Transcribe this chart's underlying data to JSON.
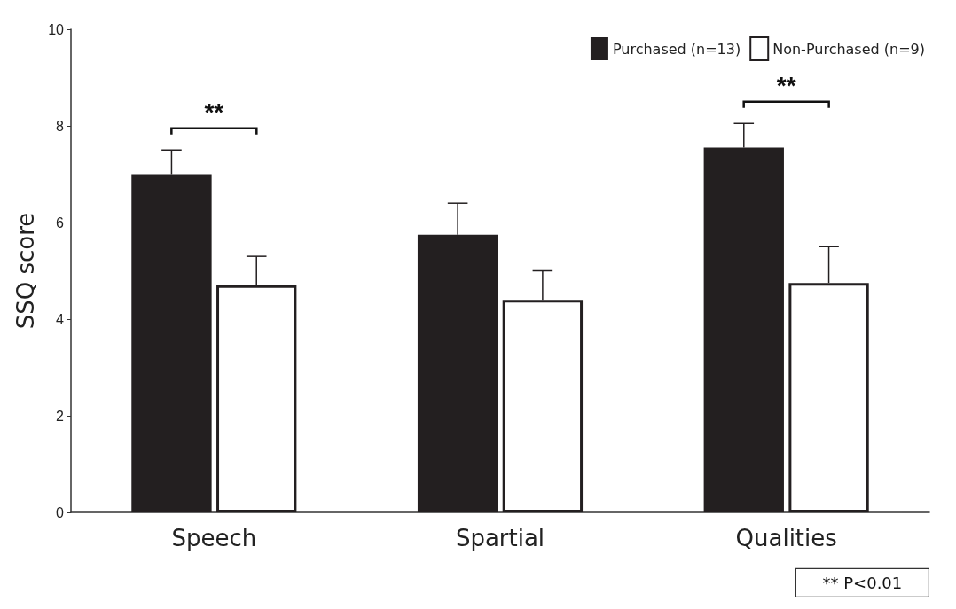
{
  "chart_data": {
    "type": "bar",
    "ylabel": "SSQ score",
    "categories": [
      "Speech",
      "Spartial",
      "Qualities"
    ],
    "series": [
      {
        "name": "Purchased (n=13)",
        "color": "#231f20",
        "values": [
          7.0,
          5.75,
          7.55
        ],
        "errors": [
          [
            7.0,
            7.5
          ],
          [
            5.75,
            6.4
          ],
          [
            7.55,
            8.05
          ]
        ]
      },
      {
        "name": "Non-Purchased (n=9)",
        "color": "#ffffff",
        "values": [
          4.7,
          4.4,
          4.75
        ],
        "errors": [
          [
            4.7,
            5.3
          ],
          [
            4.4,
            5.0
          ],
          [
            4.75,
            5.5
          ]
        ]
      }
    ],
    "ylim": [
      0,
      10
    ],
    "yticks": [
      0,
      2,
      4,
      6,
      8,
      10
    ],
    "grid": false,
    "legend": "top right",
    "annotations": [
      "**",
      "**",
      "** P<0.01"
    ]
  }
}
